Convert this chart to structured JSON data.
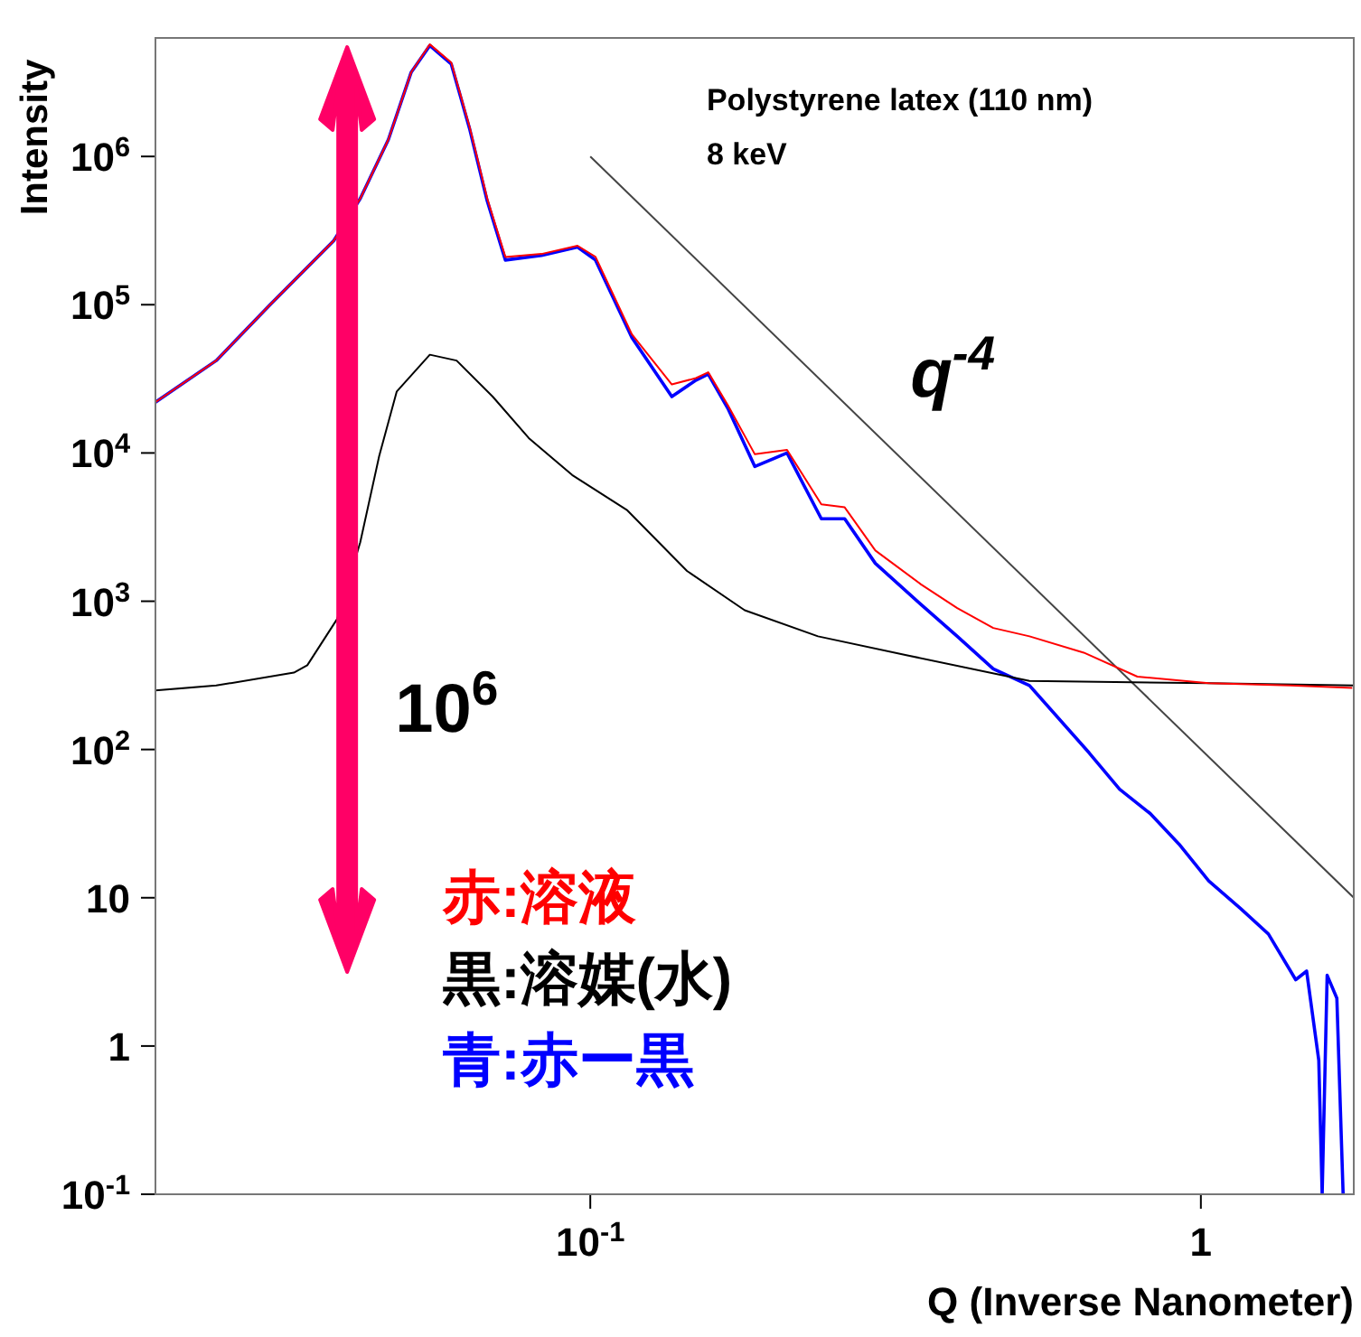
{
  "chart_data": {
    "type": "line",
    "title": "Polystyrene latex (110 nm)",
    "subtitle": "8 keV",
    "xlabel": "Q (Inverse Nanometer)",
    "ylabel": "Intensity",
    "log": "xy",
    "marker": "none",
    "line_style": "solid",
    "legend": "bottom left",
    "xlim": [
      0.0194,
      1.78
    ],
    "ylim": [
      0.1,
      6300000
    ],
    "xticks": [
      {
        "value": 0.1,
        "label": "10$^{-1}$"
      },
      1
    ],
    "yticks": [
      {
        "value": 0.1,
        "label": "10$^{-1}$"
      },
      1,
      10,
      {
        "value": 100,
        "label": "10$^{2}$"
      },
      {
        "value": 1000,
        "label": "10$^{3}$"
      },
      {
        "value": 10000,
        "label": "10$^{4}$"
      },
      {
        "value": 100000,
        "label": "10$^{5}$"
      },
      {
        "value": 1000000,
        "label": "10$^{6}$"
      }
    ],
    "annotations": [
      "q$^{-4}$",
      "10$^{6}$"
    ],
    "series": [
      {
        "name": "赤:溶液",
        "color": "#ff0000",
        "x": [
          0.0194,
          0.0244,
          0.0299,
          0.038,
          0.042,
          0.0467,
          0.0509,
          0.0546,
          0.0592,
          0.0634,
          0.0678,
          0.0726,
          0.0832,
          0.0953,
          0.102,
          0.117,
          0.136,
          0.149,
          0.156,
          0.168,
          0.186,
          0.21,
          0.239,
          0.261,
          0.293,
          0.348,
          0.399,
          0.457,
          0.524,
          0.643,
          0.787,
          1.03,
          1.4,
          1.77
        ],
        "values": [
          22000,
          42000,
          100000,
          270000,
          520000,
          1300000,
          3700000,
          5700000,
          4300000,
          1600000,
          520000,
          210000,
          220000,
          250000,
          210000,
          63000,
          29000,
          32000,
          35000,
          21000,
          9800,
          10500,
          4500,
          4300,
          2200,
          1300,
          900,
          660,
          580,
          450,
          310,
          280,
          270,
          260
        ]
      },
      {
        "name": "黒:溶媒(水)",
        "color": "#000000",
        "x": [
          0.0194,
          0.0244,
          0.0327,
          0.0344,
          0.0385,
          0.042,
          0.0451,
          0.0482,
          0.0546,
          0.0604,
          0.0692,
          0.0793,
          0.0934,
          0.115,
          0.144,
          0.179,
          0.236,
          0.332,
          0.524,
          1.03,
          1.78
        ],
        "values": [
          250,
          270,
          330,
          370,
          760,
          2500,
          9500,
          26000,
          46000,
          42000,
          24000,
          12600,
          7100,
          4100,
          1600,
          870,
          580,
          430,
          290,
          280,
          270
        ]
      },
      {
        "name": "青:赤ー黒",
        "color": "#0000ff",
        "x": [
          0.0194,
          0.0244,
          0.0299,
          0.038,
          0.042,
          0.0467,
          0.0509,
          0.0546,
          0.0592,
          0.0634,
          0.0678,
          0.0726,
          0.0832,
          0.0953,
          0.102,
          0.117,
          0.136,
          0.149,
          0.156,
          0.168,
          0.186,
          0.21,
          0.239,
          0.261,
          0.293,
          0.348,
          0.399,
          0.457,
          0.524,
          0.656,
          0.736,
          0.826,
          0.921,
          1.03,
          1.16,
          1.29,
          1.43,
          1.49,
          1.56,
          1.58,
          1.61,
          1.67,
          1.71
        ],
        "values": [
          22000,
          42000,
          100000,
          270000,
          520000,
          1300000,
          3700000,
          5600000,
          4200000,
          1550000,
          500000,
          200000,
          215000,
          245000,
          200000,
          60000,
          24000,
          31000,
          34000,
          20000,
          8100,
          10000,
          3600,
          3600,
          1800,
          950,
          580,
          350,
          270,
          95,
          54,
          37,
          23,
          13,
          8.5,
          5.7,
          2.8,
          3.2,
          0.8,
          0.1,
          3,
          2.1,
          0.1
        ]
      },
      {
        "color": "#444444",
        "x": [
          0.1,
          1.78
        ],
        "values": [
          1000000,
          10
        ]
      }
    ]
  }
}
